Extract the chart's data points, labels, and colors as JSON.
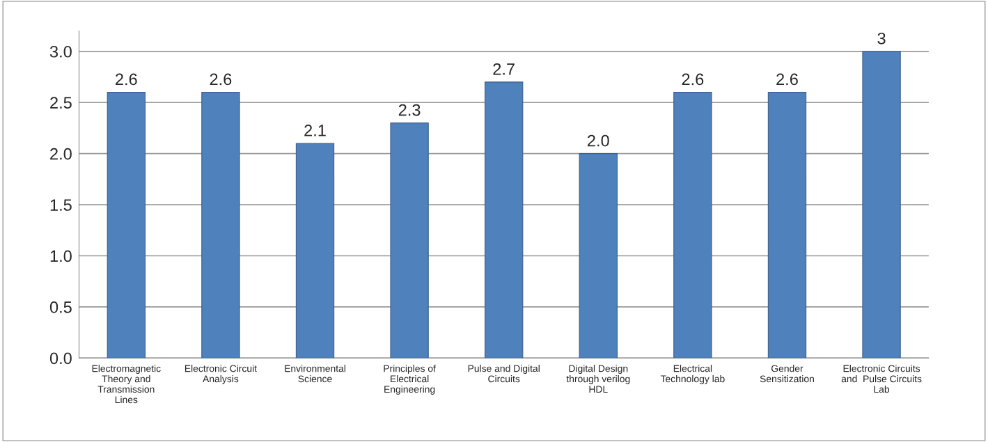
{
  "chart_data": {
    "type": "bar",
    "categories": [
      "Electromagnetic\nTheory and\nTransmission\nLines",
      "Electronic Circuit\nAnalysis",
      "Environmental\nScience",
      "Principles of\nElectrical\nEngineering",
      "Pulse and Digital\nCircuits",
      "Digital Design\nthrough verilog\nHDL",
      "Electrical\nTechnology lab",
      "Gender\nSensitization",
      "Electronic Circuits\nand  Pulse Circuits\nLab"
    ],
    "values": [
      2.6,
      2.6,
      2.1,
      2.3,
      2.7,
      2.0,
      2.6,
      2.6,
      3
    ],
    "color": "#4f81bd",
    "value_labels": [
      "2.6",
      "2.6",
      "2.1",
      "2.3",
      "2.7",
      "2.0",
      "2.6",
      "2.6",
      "3"
    ],
    "ylim": [
      0,
      3.2
    ],
    "yticks": [
      {
        "value": 0,
        "label": "0.0"
      },
      {
        "value": 0.5,
        "label": "0.5"
      },
      {
        "value": 1,
        "label": "1.0"
      },
      {
        "value": 1.5,
        "label": "1.5"
      },
      {
        "value": 2,
        "label": "2.0"
      },
      {
        "value": 2.5,
        "label": "2.5"
      },
      {
        "value": 3,
        "label": "3.0"
      }
    ],
    "grid": "y"
  }
}
